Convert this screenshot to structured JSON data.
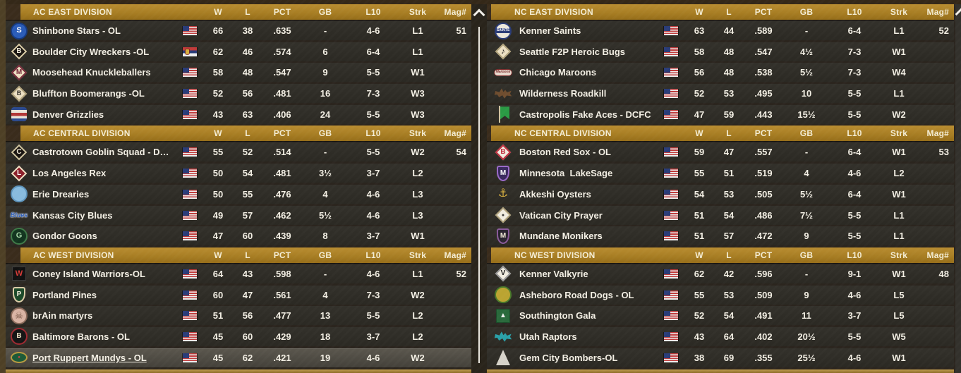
{
  "colors": {
    "accent_gold": "#a87e24",
    "header_text": "#f4edd4",
    "row_bg": "#2f2d27",
    "row_text": "#f3efe4",
    "selected_row_bg": "#4f4b43",
    "page_bg": "#2b251e"
  },
  "columns": [
    "W",
    "L",
    "PCT",
    "GB",
    "L10",
    "Strk",
    "Mag#"
  ],
  "scrollbars": {
    "middle_up_arrow": "up",
    "right_up_arrow": "up"
  },
  "leagues": [
    {
      "side": "left",
      "divisions": [
        {
          "name": "AC EAST DIVISION",
          "teams": [
            {
              "name": "Shinbone Stars - OL",
              "flag": "us",
              "stats": [
                "66",
                "38",
                ".635",
                "-",
                "4-6",
                "L1",
                "51"
              ],
              "icon": {
                "shape": "circle",
                "bg": "#2a5cb8",
                "border": "#163a80",
                "fg": "#ffffff",
                "label": "S",
                "fs": 11
              }
            },
            {
              "name": "Boulder City Wreckers -OL",
              "flag": "rs",
              "stats": [
                "62",
                "46",
                ".574",
                "6",
                "6-4",
                "L1",
                ""
              ],
              "icon": {
                "shape": "diamond",
                "bg": "#191410",
                "border": "#d9cba6",
                "fg": "#f1ead7",
                "label": "B",
                "fs": 10
              }
            },
            {
              "name": "Moosehead Knuckleballers",
              "flag": "us",
              "stats": [
                "58",
                "48",
                ".547",
                "9",
                "5-5",
                "W1",
                ""
              ],
              "icon": {
                "shape": "diamond",
                "bg": "#ecdfc2",
                "border": "#77293a",
                "fg": "#77293a",
                "label": "M",
                "fs": 10
              }
            },
            {
              "name": "Bluffton Boomerangs -OL",
              "flag": "us",
              "stats": [
                "52",
                "56",
                ".481",
                "16",
                "7-3",
                "W3",
                ""
              ],
              "icon": {
                "shape": "diamond",
                "bg": "#ecdfc2",
                "border": "#b1a37c",
                "fg": "#2e2b26",
                "label": "B",
                "fs": 9
              }
            },
            {
              "name": "Denver Grizzlies",
              "flag": "us",
              "stats": [
                "43",
                "63",
                ".406",
                "24",
                "5-5",
                "W3",
                ""
              ],
              "icon": {
                "shape": "barrel",
                "bg": "#e9e4d9",
                "border": "#2c4a8e",
                "fg": "#b23737",
                "label": ""
              }
            }
          ]
        },
        {
          "name": "AC CENTRAL DIVISION",
          "teams": [
            {
              "name": "Castrotown Goblin Squad - DCFC",
              "flag": "us",
              "stats": [
                "55",
                "52",
                ".514",
                "-",
                "5-5",
                "W2",
                "54"
              ],
              "icon": {
                "shape": "diamond",
                "bg": "#191410",
                "border": "#cfc4a0",
                "fg": "#f1ead7",
                "label": "C",
                "fs": 10
              }
            },
            {
              "name": "Los Angeles Rex",
              "flag": "us",
              "stats": [
                "50",
                "54",
                ".481",
                "3½",
                "3-7",
                "L2",
                ""
              ],
              "icon": {
                "shape": "diamond",
                "bg": "#8c1f2a",
                "border": "#ecdfc2",
                "fg": "#ffffff",
                "label": "L",
                "fs": 10
              }
            },
            {
              "name": "Erie Drearies",
              "flag": "us",
              "stats": [
                "50",
                "55",
                ".476",
                "4",
                "4-6",
                "L3",
                ""
              ],
              "icon": {
                "shape": "circle",
                "bg": "#88bbde",
                "border": "#5d93bb",
                "fg": "#ffffff",
                "label": ""
              }
            },
            {
              "name": "Kansas City Blues",
              "flag": "us",
              "stats": [
                "49",
                "57",
                ".462",
                "5½",
                "4-6",
                "L3",
                ""
              ],
              "icon": {
                "shape": "script",
                "bg": "",
                "border": "",
                "fg": "#2a5cb8",
                "label": "Blues",
                "fs": 9
              }
            },
            {
              "name": "Gondor Goons",
              "flag": "us",
              "stats": [
                "47",
                "60",
                ".439",
                "8",
                "3-7",
                "W1",
                ""
              ],
              "icon": {
                "shape": "circle",
                "bg": "#12351f",
                "border": "#3f7a48",
                "fg": "#a8d8a8",
                "label": "G",
                "fs": 11
              }
            }
          ]
        },
        {
          "name": "AC WEST DIVISION",
          "teams": [
            {
              "name": "Coney Island Warriors-OL",
              "flag": "us",
              "stats": [
                "64",
                "43",
                ".598",
                "-",
                "4-6",
                "L1",
                "52"
              ],
              "icon": {
                "shape": "square",
                "bg": "#111111",
                "border": "#3a3a3a",
                "fg": "#d43b37",
                "label": "W",
                "fs": 11
              }
            },
            {
              "name": "Portland Pines",
              "flag": "us",
              "stats": [
                "60",
                "47",
                ".561",
                "4",
                "7-3",
                "W2",
                ""
              ],
              "icon": {
                "shape": "shield",
                "bg": "#1d4a2a",
                "border": "#d9cba6",
                "fg": "#f1ead7",
                "label": "P",
                "fs": 10
              }
            },
            {
              "name": "brAin martyrs",
              "flag": "us",
              "stats": [
                "51",
                "56",
                ".477",
                "13",
                "5-5",
                "L2",
                ""
              ],
              "icon": {
                "shape": "circle",
                "bg": "#d9b3a3",
                "border": "#8a6a5a",
                "fg": "#6b4a3a",
                "label": "☠",
                "fs": 13
              }
            },
            {
              "name": "Baltimore Barons - OL",
              "flag": "us",
              "stats": [
                "45",
                "60",
                ".429",
                "18",
                "3-7",
                "L2",
                ""
              ],
              "icon": {
                "shape": "circle",
                "bg": "#151515",
                "border": "#a12a32",
                "fg": "#ecdfc2",
                "label": "B",
                "fs": 10
              }
            },
            {
              "name": "Port Ruppert Mundys - OL",
              "flag": "us",
              "selected": true,
              "stats": [
                "45",
                "62",
                ".421",
                "19",
                "4-6",
                "W2",
                ""
              ],
              "icon": {
                "shape": "oval",
                "bg": "#1d5a38",
                "border": "#b89a40",
                "fg": "#d84040",
                "label": "●",
                "fs": 6
              }
            }
          ]
        }
      ]
    },
    {
      "side": "right",
      "divisions": [
        {
          "name": "NC EAST DIVISION",
          "teams": [
            {
              "name": "Kenner Saints",
              "flag": "us",
              "stats": [
                "63",
                "44",
                ".589",
                "-",
                "6-4",
                "L1",
                "52"
              ],
              "icon": {
                "shape": "circle",
                "bg": "#ece8db",
                "border": "#2a3c78",
                "fg": "#ffffff",
                "label": "SAINTS",
                "fs": 5,
                "band": "#2a3c78"
              }
            },
            {
              "name": "Seattle F2P Heroic Bugs",
              "flag": "us",
              "stats": [
                "58",
                "48",
                ".547",
                "4½",
                "7-3",
                "W1",
                ""
              ],
              "icon": {
                "shape": "diamond",
                "bg": "#ecdfc2",
                "border": "#b1a37c",
                "fg": "#141414",
                "label": "♪",
                "fs": 11
              }
            },
            {
              "name": "Chicago Maroons",
              "flag": "us",
              "stats": [
                "56",
                "48",
                ".538",
                "5½",
                "7-3",
                "W4",
                ""
              ],
              "icon": {
                "shape": "pill",
                "bg": "#e9d9cd",
                "border": "#7a2a2a",
                "fg": "#7a2a2a",
                "label": "Maroons",
                "fs": 5
              }
            },
            {
              "name": "Wilderness Roadkill",
              "flag": "us",
              "stats": [
                "52",
                "53",
                ".495",
                "10",
                "5-5",
                "L1",
                ""
              ],
              "icon": {
                "shape": "splat",
                "bg": "#6f4d2f",
                "border": "",
                "fg": "",
                "label": ""
              }
            },
            {
              "name": "Castropolis Fake Aces - DCFC",
              "flag": "us",
              "stats": [
                "47",
                "59",
                ".443",
                "15½",
                "5-5",
                "W2",
                ""
              ],
              "icon": {
                "shape": "flagpen",
                "bg": "#2a9a44",
                "border": "#cfc4a0",
                "fg": "",
                "label": ""
              }
            }
          ]
        },
        {
          "name": "NC CENTRAL DIVISION",
          "teams": [
            {
              "name": "Boston Red Sox - OL",
              "flag": "us",
              "stats": [
                "59",
                "47",
                ".557",
                "-",
                "6-4",
                "W1",
                "53"
              ],
              "icon": {
                "shape": "diamond",
                "bg": "#f0ece0",
                "border": "#c23040",
                "fg": "#c23040",
                "label": "B",
                "fs": 10
              }
            },
            {
              "name": "Minnesota  LakeSage",
              "flag": "us",
              "stats": [
                "55",
                "51",
                ".519",
                "4",
                "4-6",
                "L2",
                ""
              ],
              "icon": {
                "shape": "shield",
                "bg": "#3a2a5e",
                "border": "#9a6ac8",
                "fg": "#ffffff",
                "label": "M",
                "fs": 10
              }
            },
            {
              "name": "Akkeshi Oysters",
              "flag": "us",
              "stats": [
                "54",
                "53",
                ".505",
                "5½",
                "6-4",
                "W1",
                ""
              ],
              "icon": {
                "shape": "plain",
                "bg": "",
                "border": "",
                "fg": "#d8b040",
                "label": "⚓",
                "fs": 16
              }
            },
            {
              "name": "Vatican City Prayer",
              "flag": "us",
              "stats": [
                "51",
                "54",
                ".486",
                "7½",
                "5-5",
                "L1",
                ""
              ],
              "icon": {
                "shape": "diamond",
                "bg": "#f0ece0",
                "border": "#b1a37c",
                "fg": "#3a3a3a",
                "label": "●",
                "fs": 7
              }
            },
            {
              "name": "Mundane Monikers",
              "flag": "us",
              "stats": [
                "51",
                "57",
                ".472",
                "9",
                "5-5",
                "L1",
                ""
              ],
              "icon": {
                "shape": "shield",
                "bg": "#2a2430",
                "border": "#8a5a9a",
                "fg": "#f1ead7",
                "label": "M",
                "fs": 10
              }
            }
          ]
        },
        {
          "name": "NC WEST DIVISION",
          "teams": [
            {
              "name": "Kenner Valkyrie",
              "flag": "us",
              "stats": [
                "62",
                "42",
                ".596",
                "-",
                "9-1",
                "W1",
                "48"
              ],
              "icon": {
                "shape": "diamond",
                "bg": "#f0ece0",
                "border": "#999999",
                "fg": "#1a1a1a",
                "label": "V",
                "fs": 10
              }
            },
            {
              "name": "Asheboro Road Dogs - OL",
              "flag": "us",
              "stats": [
                "55",
                "53",
                ".509",
                "9",
                "4-6",
                "L5",
                ""
              ],
              "icon": {
                "shape": "circle",
                "bg": "#bba431",
                "border": "#4a7a2a",
                "fg": "#1d4a1d",
                "label": ""
              }
            },
            {
              "name": "Southington Gala",
              "flag": "us",
              "stats": [
                "52",
                "54",
                ".491",
                "11",
                "3-7",
                "L5",
                ""
              ],
              "icon": {
                "shape": "square",
                "bg": "#2a6a3c",
                "border": "#1a4a28",
                "fg": "#f0f0f0",
                "label": "▲",
                "fs": 10
              }
            },
            {
              "name": "Utah Raptors",
              "flag": "us",
              "stats": [
                "43",
                "64",
                ".402",
                "20½",
                "5-5",
                "W5",
                ""
              ],
              "icon": {
                "shape": "splat",
                "bg": "#2aa0a8",
                "border": "",
                "fg": "",
                "label": ""
              }
            },
            {
              "name": "Gem City Bombers-OL",
              "flag": "us",
              "stats": [
                "38",
                "69",
                ".355",
                "25½",
                "4-6",
                "W1",
                ""
              ],
              "icon": {
                "shape": "triangle",
                "bg": "#d6d2c9",
                "border": "",
                "fg": "#555555",
                "label": ""
              }
            }
          ]
        }
      ]
    }
  ]
}
